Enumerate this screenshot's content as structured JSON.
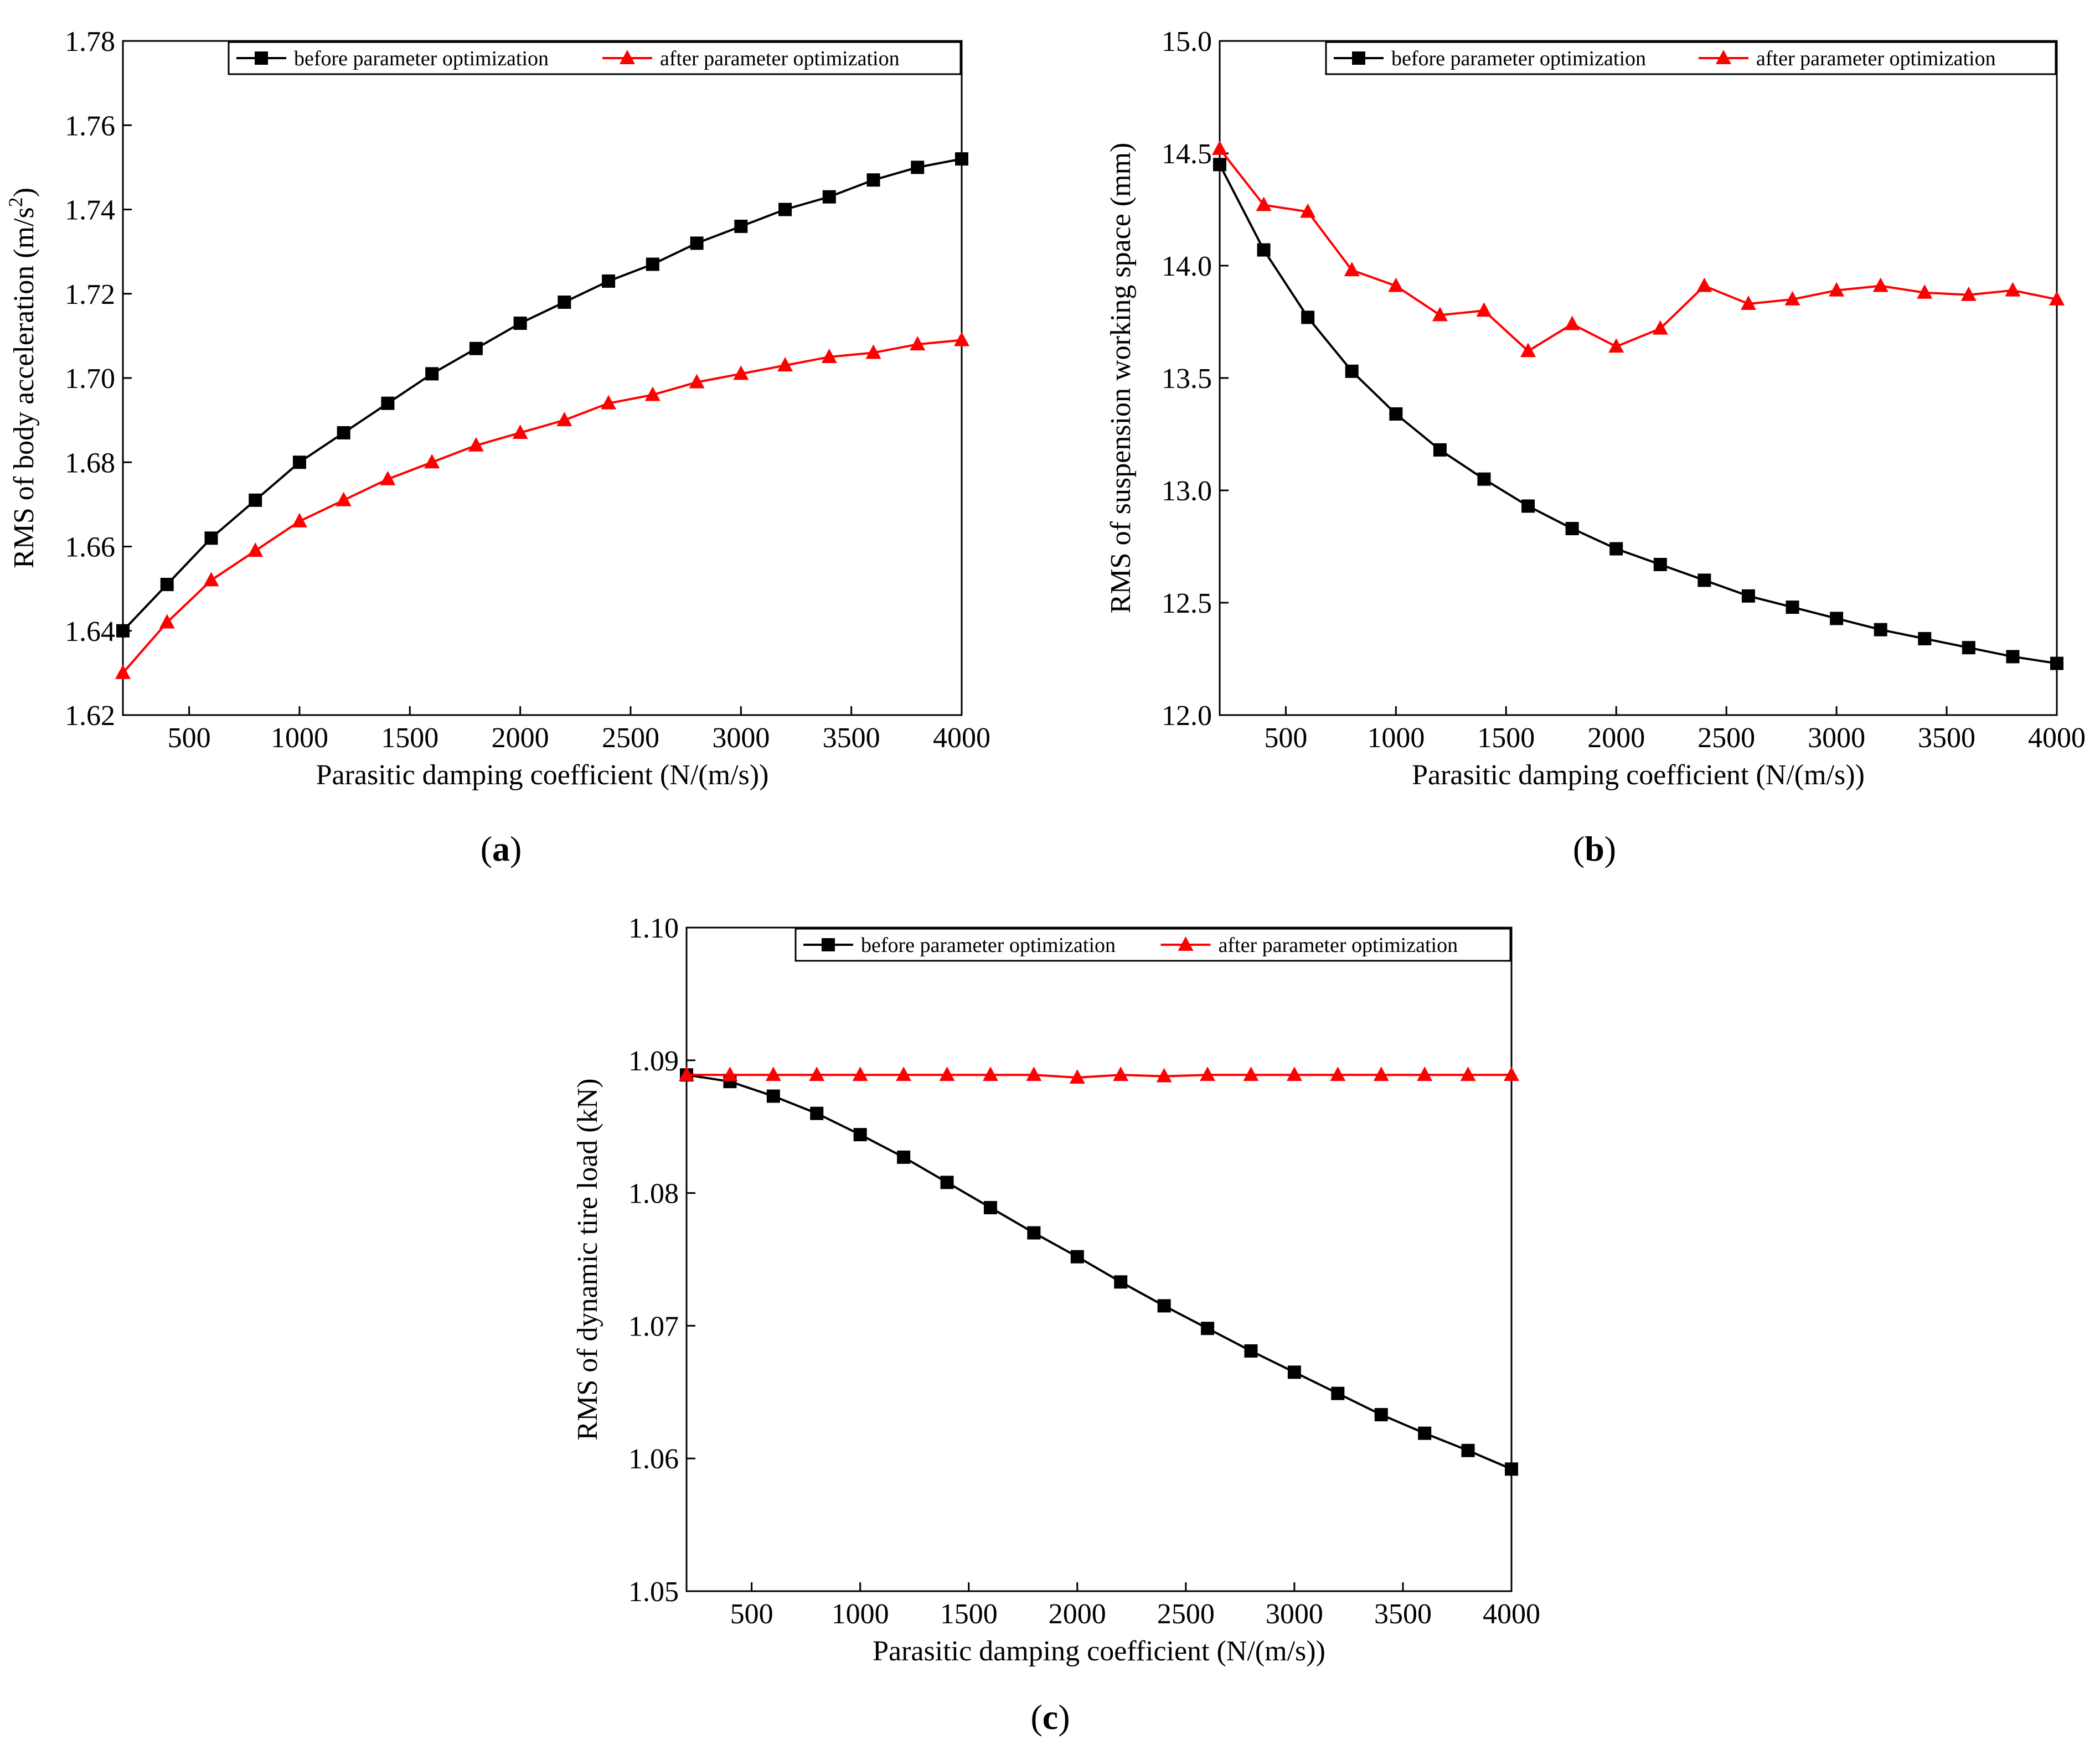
{
  "figure": {
    "panel_labels": [
      {
        "open": "(",
        "letter": "a",
        "close": ")"
      },
      {
        "open": "(",
        "letter": "b",
        "close": ")"
      },
      {
        "open": "(",
        "letter": "c",
        "close": ")"
      }
    ],
    "colors": {
      "before": "#000000",
      "after": "#ff0000",
      "axis": "#000000",
      "background": "#ffffff"
    }
  },
  "chart_data": [
    {
      "type": "line",
      "title": "",
      "xlabel": "Parasitic damping coefficient (N/(m/s))",
      "ylabel": "RMS of body acceleration (m/s²)",
      "ylabel_parts": {
        "before": "RMS of body acceleration (m/s",
        "sup": "2",
        "after": ")"
      },
      "xlim": [
        200,
        4000
      ],
      "ylim": [
        1.62,
        1.78
      ],
      "xticks": [
        500,
        1000,
        1500,
        2000,
        2500,
        3000,
        3500,
        4000
      ],
      "yticks": [
        1.62,
        1.64,
        1.66,
        1.68,
        1.7,
        1.72,
        1.74,
        1.76,
        1.78
      ],
      "ytick_labels": [
        "1.62",
        "1.64",
        "1.66",
        "1.68",
        "1.70",
        "1.72",
        "1.74",
        "1.76",
        "1.78"
      ],
      "grid": false,
      "legend_position": "top-right",
      "x": [
        200,
        400,
        600,
        800,
        1000,
        1200,
        1400,
        1600,
        1800,
        2000,
        2200,
        2400,
        2600,
        2800,
        3000,
        3200,
        3400,
        3600,
        3800,
        4000
      ],
      "series": [
        {
          "name": "before parameter optimization",
          "marker": "square",
          "color": "#000000",
          "values": [
            1.64,
            1.651,
            1.662,
            1.671,
            1.68,
            1.687,
            1.694,
            1.701,
            1.707,
            1.713,
            1.718,
            1.723,
            1.727,
            1.732,
            1.736,
            1.74,
            1.743,
            1.747,
            1.75,
            1.752
          ]
        },
        {
          "name": "after parameter optimization",
          "marker": "triangle",
          "color": "#ff0000",
          "values": [
            1.63,
            1.642,
            1.652,
            1.659,
            1.666,
            1.671,
            1.676,
            1.68,
            1.684,
            1.687,
            1.69,
            1.694,
            1.696,
            1.699,
            1.701,
            1.703,
            1.705,
            1.706,
            1.708,
            1.709
          ]
        }
      ]
    },
    {
      "type": "line",
      "title": "",
      "xlabel": "Parasitic damping coefficient (N/(m/s))",
      "ylabel": "RMS of suspension working space (mm)",
      "xlim": [
        200,
        4000
      ],
      "ylim": [
        12.0,
        15.0
      ],
      "xticks": [
        500,
        1000,
        1500,
        2000,
        2500,
        3000,
        3500,
        4000
      ],
      "yticks": [
        12.0,
        12.5,
        13.0,
        13.5,
        14.0,
        14.5,
        15.0
      ],
      "ytick_labels": [
        "12.0",
        "12.5",
        "13.0",
        "13.5",
        "14.0",
        "14.5",
        "15.0"
      ],
      "grid": false,
      "legend_position": "top-right",
      "x": [
        200,
        400,
        600,
        800,
        1000,
        1200,
        1400,
        1600,
        1800,
        2000,
        2200,
        2400,
        2600,
        2800,
        3000,
        3200,
        3400,
        3600,
        3800,
        4000
      ],
      "series": [
        {
          "name": "before parameter optimization",
          "marker": "square",
          "color": "#000000",
          "values": [
            14.45,
            14.07,
            13.77,
            13.53,
            13.34,
            13.18,
            13.05,
            12.93,
            12.83,
            12.74,
            12.67,
            12.6,
            12.53,
            12.48,
            12.43,
            12.38,
            12.34,
            12.3,
            12.26,
            12.23
          ]
        },
        {
          "name": "after parameter optimization",
          "marker": "triangle",
          "color": "#ff0000",
          "values": [
            14.52,
            14.27,
            14.24,
            13.98,
            13.91,
            13.78,
            13.8,
            13.62,
            13.74,
            13.64,
            13.72,
            13.91,
            13.83,
            13.85,
            13.89,
            13.91,
            13.88,
            13.87,
            13.89,
            13.85
          ]
        }
      ]
    },
    {
      "type": "line",
      "title": "",
      "xlabel": "Parasitic damping coefficient (N/(m/s))",
      "ylabel": "RMS of dynamic tire load (kN)",
      "xlim": [
        200,
        4000
      ],
      "ylim": [
        1.05,
        1.1
      ],
      "xticks": [
        500,
        1000,
        1500,
        2000,
        2500,
        3000,
        3500,
        4000
      ],
      "yticks": [
        1.05,
        1.06,
        1.07,
        1.08,
        1.09,
        1.1
      ],
      "ytick_labels": [
        "1.05",
        "1.06",
        "1.07",
        "1.08",
        "1.09",
        "1.10"
      ],
      "grid": false,
      "legend_position": "top-right",
      "x": [
        200,
        400,
        600,
        800,
        1000,
        1200,
        1400,
        1600,
        1800,
        2000,
        2200,
        2400,
        2600,
        2800,
        3000,
        3200,
        3400,
        3600,
        3800,
        4000
      ],
      "series": [
        {
          "name": "before parameter optimization",
          "marker": "square",
          "color": "#000000",
          "values": [
            1.0889,
            1.0884,
            1.0873,
            1.086,
            1.0844,
            1.0827,
            1.0808,
            1.0789,
            1.077,
            1.0752,
            1.0733,
            1.0715,
            1.0698,
            1.0681,
            1.0665,
            1.0649,
            1.0633,
            1.0619,
            1.0606,
            1.0592
          ]
        },
        {
          "name": "after parameter optimization",
          "marker": "triangle",
          "color": "#ff0000",
          "values": [
            1.0889,
            1.0889,
            1.0889,
            1.0889,
            1.0889,
            1.0889,
            1.0889,
            1.0889,
            1.0889,
            1.0887,
            1.0889,
            1.0888,
            1.0889,
            1.0889,
            1.0889,
            1.0889,
            1.0889,
            1.0889,
            1.0889,
            1.0889
          ]
        }
      ]
    }
  ]
}
